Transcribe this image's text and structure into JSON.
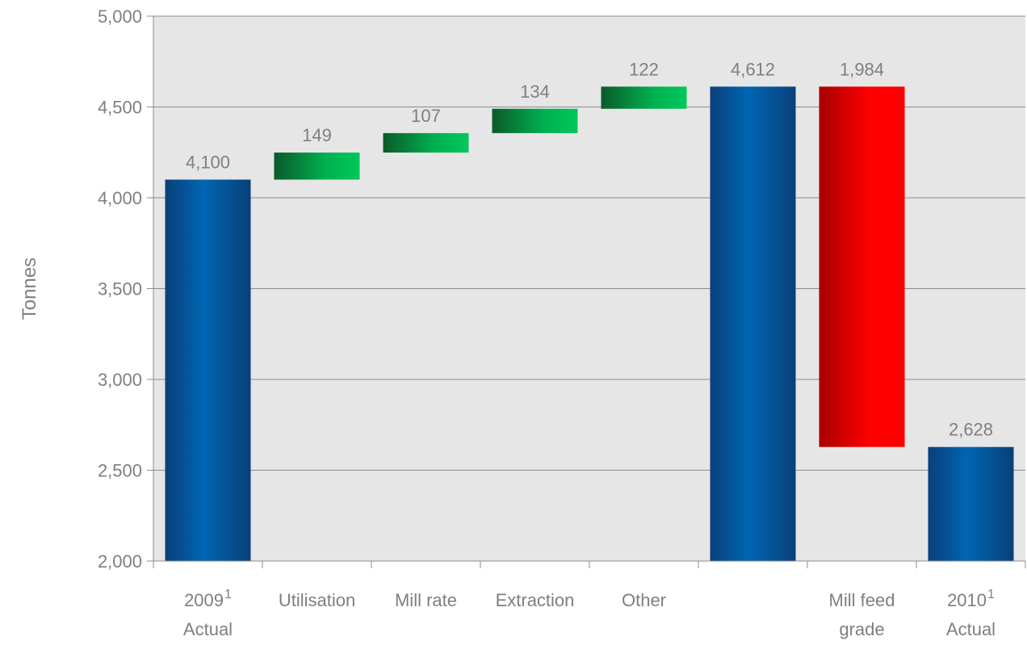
{
  "chart_data": {
    "type": "bar",
    "ylabel": "Tonnes",
    "ylim": [
      2000,
      5000
    ],
    "yticks": [
      2000,
      2500,
      3000,
      3500,
      4000,
      4500,
      5000
    ],
    "ytick_labels": [
      "2,000",
      "2,500",
      "3,000",
      "3,500",
      "4,000",
      "4,500",
      "5,000"
    ],
    "grid": true,
    "legend": "none",
    "categories": [
      {
        "lines": [
          "2009",
          "Actual"
        ],
        "superscript": "1"
      },
      {
        "lines": [
          "Utilisation"
        ]
      },
      {
        "lines": [
          "Mill rate"
        ]
      },
      {
        "lines": [
          "Extraction"
        ]
      },
      {
        "lines": [
          "Other"
        ]
      },
      {
        "lines": []
      },
      {
        "lines": [
          "Mill feed",
          "grade"
        ]
      },
      {
        "lines": [
          "2010",
          "Actual"
        ],
        "superscript": "1"
      }
    ],
    "bars": [
      {
        "kind": "total",
        "start": 2000,
        "end": 4100,
        "label": "4,100"
      },
      {
        "kind": "increase",
        "start": 4100,
        "end": 4249,
        "label": "149"
      },
      {
        "kind": "increase",
        "start": 4249,
        "end": 4356,
        "label": "107"
      },
      {
        "kind": "increase",
        "start": 4356,
        "end": 4490,
        "label": "134"
      },
      {
        "kind": "increase",
        "start": 4490,
        "end": 4612,
        "label": "122"
      },
      {
        "kind": "total",
        "start": 2000,
        "end": 4612,
        "label": "4,612"
      },
      {
        "kind": "decrease",
        "start": 4612,
        "end": 2628,
        "label": "1,984"
      },
      {
        "kind": "total",
        "start": 2000,
        "end": 2628,
        "label": "2,628"
      }
    ],
    "colors": {
      "total": "#0060a8",
      "increase": "#00b050",
      "decrease": "#ff0000",
      "plot_background": "#e6e6e6",
      "text": "#7f7f7f"
    }
  }
}
